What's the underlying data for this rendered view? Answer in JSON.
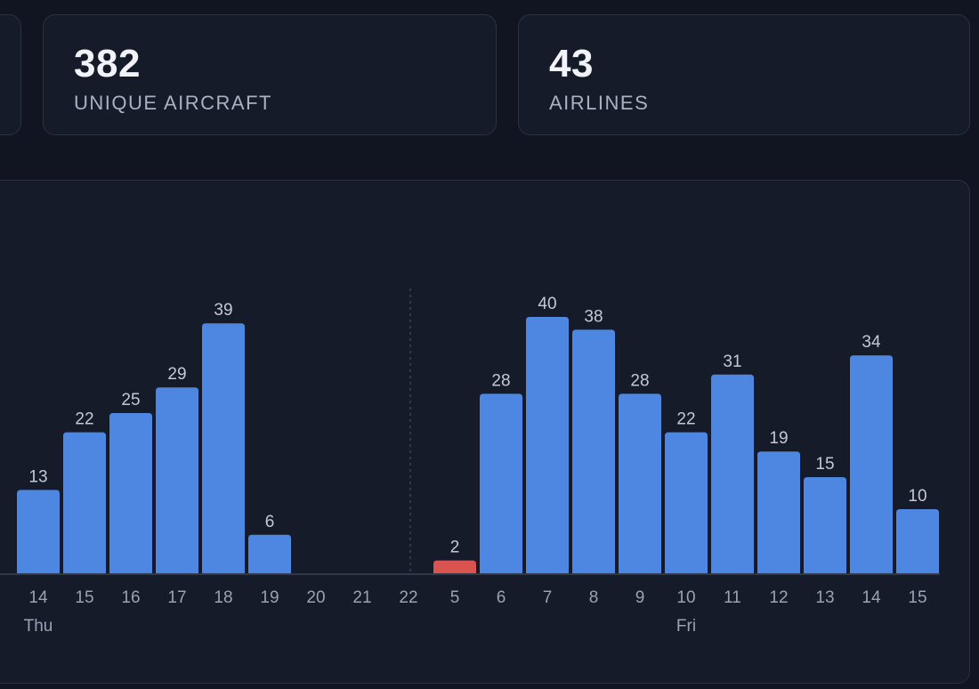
{
  "stats": [
    {
      "value": "382",
      "label": "UNIQUE AIRCRAFT"
    },
    {
      "value": "43",
      "label": "AIRLINES"
    }
  ],
  "chart_data": {
    "type": "bar",
    "categories": [
      "14",
      "15",
      "16",
      "17",
      "18",
      "19",
      "20",
      "21",
      "22",
      "5",
      "6",
      "7",
      "8",
      "9",
      "10",
      "11",
      "12",
      "13",
      "14",
      "15"
    ],
    "values": [
      13,
      22,
      25,
      29,
      39,
      6,
      0,
      0,
      0,
      2,
      28,
      40,
      38,
      28,
      22,
      31,
      19,
      15,
      34,
      10
    ],
    "day_groups": [
      {
        "label": "Thu",
        "start_index": 0
      },
      {
        "label": "Fri",
        "start_index": 9
      }
    ],
    "highlight_index": 9,
    "bar_color": "#4d87e2",
    "highlight_color": "#d9534f",
    "ylim": [
      0,
      44
    ]
  }
}
